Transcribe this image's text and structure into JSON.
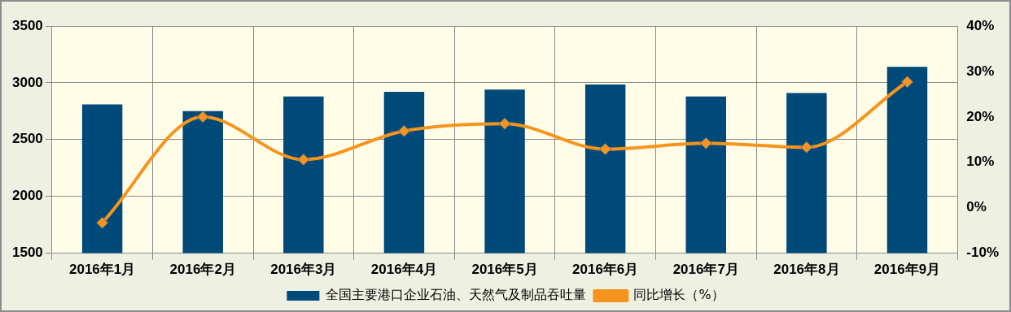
{
  "chart_data": {
    "type": "bar",
    "categories": [
      "2016年1月",
      "2016年2月",
      "2016年3月",
      "2016年4月",
      "2016年5月",
      "2016年6月",
      "2016年7月",
      "2016年8月",
      "2016年9月"
    ],
    "series": [
      {
        "name": "全国主要港口企业石油、天然气及制品吞吐量",
        "color": "#004a7a",
        "values": [
          2810,
          2750,
          2880,
          2920,
          2940,
          2985,
          2880,
          2910,
          3140
        ]
      },
      {
        "name": "同比增长（%）",
        "type": "line",
        "axis": "y2",
        "color": "#f7941d",
        "marker": "diamond",
        "values": [
          -3.3,
          20,
          10.6,
          16.9,
          18.5,
          12.9,
          14.2,
          13.3,
          27.7
        ]
      }
    ],
    "ylim": [
      1500,
      3500
    ],
    "yticks": [
      1500,
      2000,
      2500,
      3000,
      3500
    ],
    "y2lim": [
      -10,
      40
    ],
    "y2ticks": [
      {
        "value": -10,
        "label": "-10%"
      },
      {
        "value": 0,
        "label": "0%"
      },
      {
        "value": 10,
        "label": "10%"
      },
      {
        "value": 20,
        "label": "20%"
      },
      {
        "value": 30,
        "label": "30%"
      },
      {
        "value": 40,
        "label": "40%"
      }
    ],
    "grid": true,
    "legend": "bottom"
  }
}
